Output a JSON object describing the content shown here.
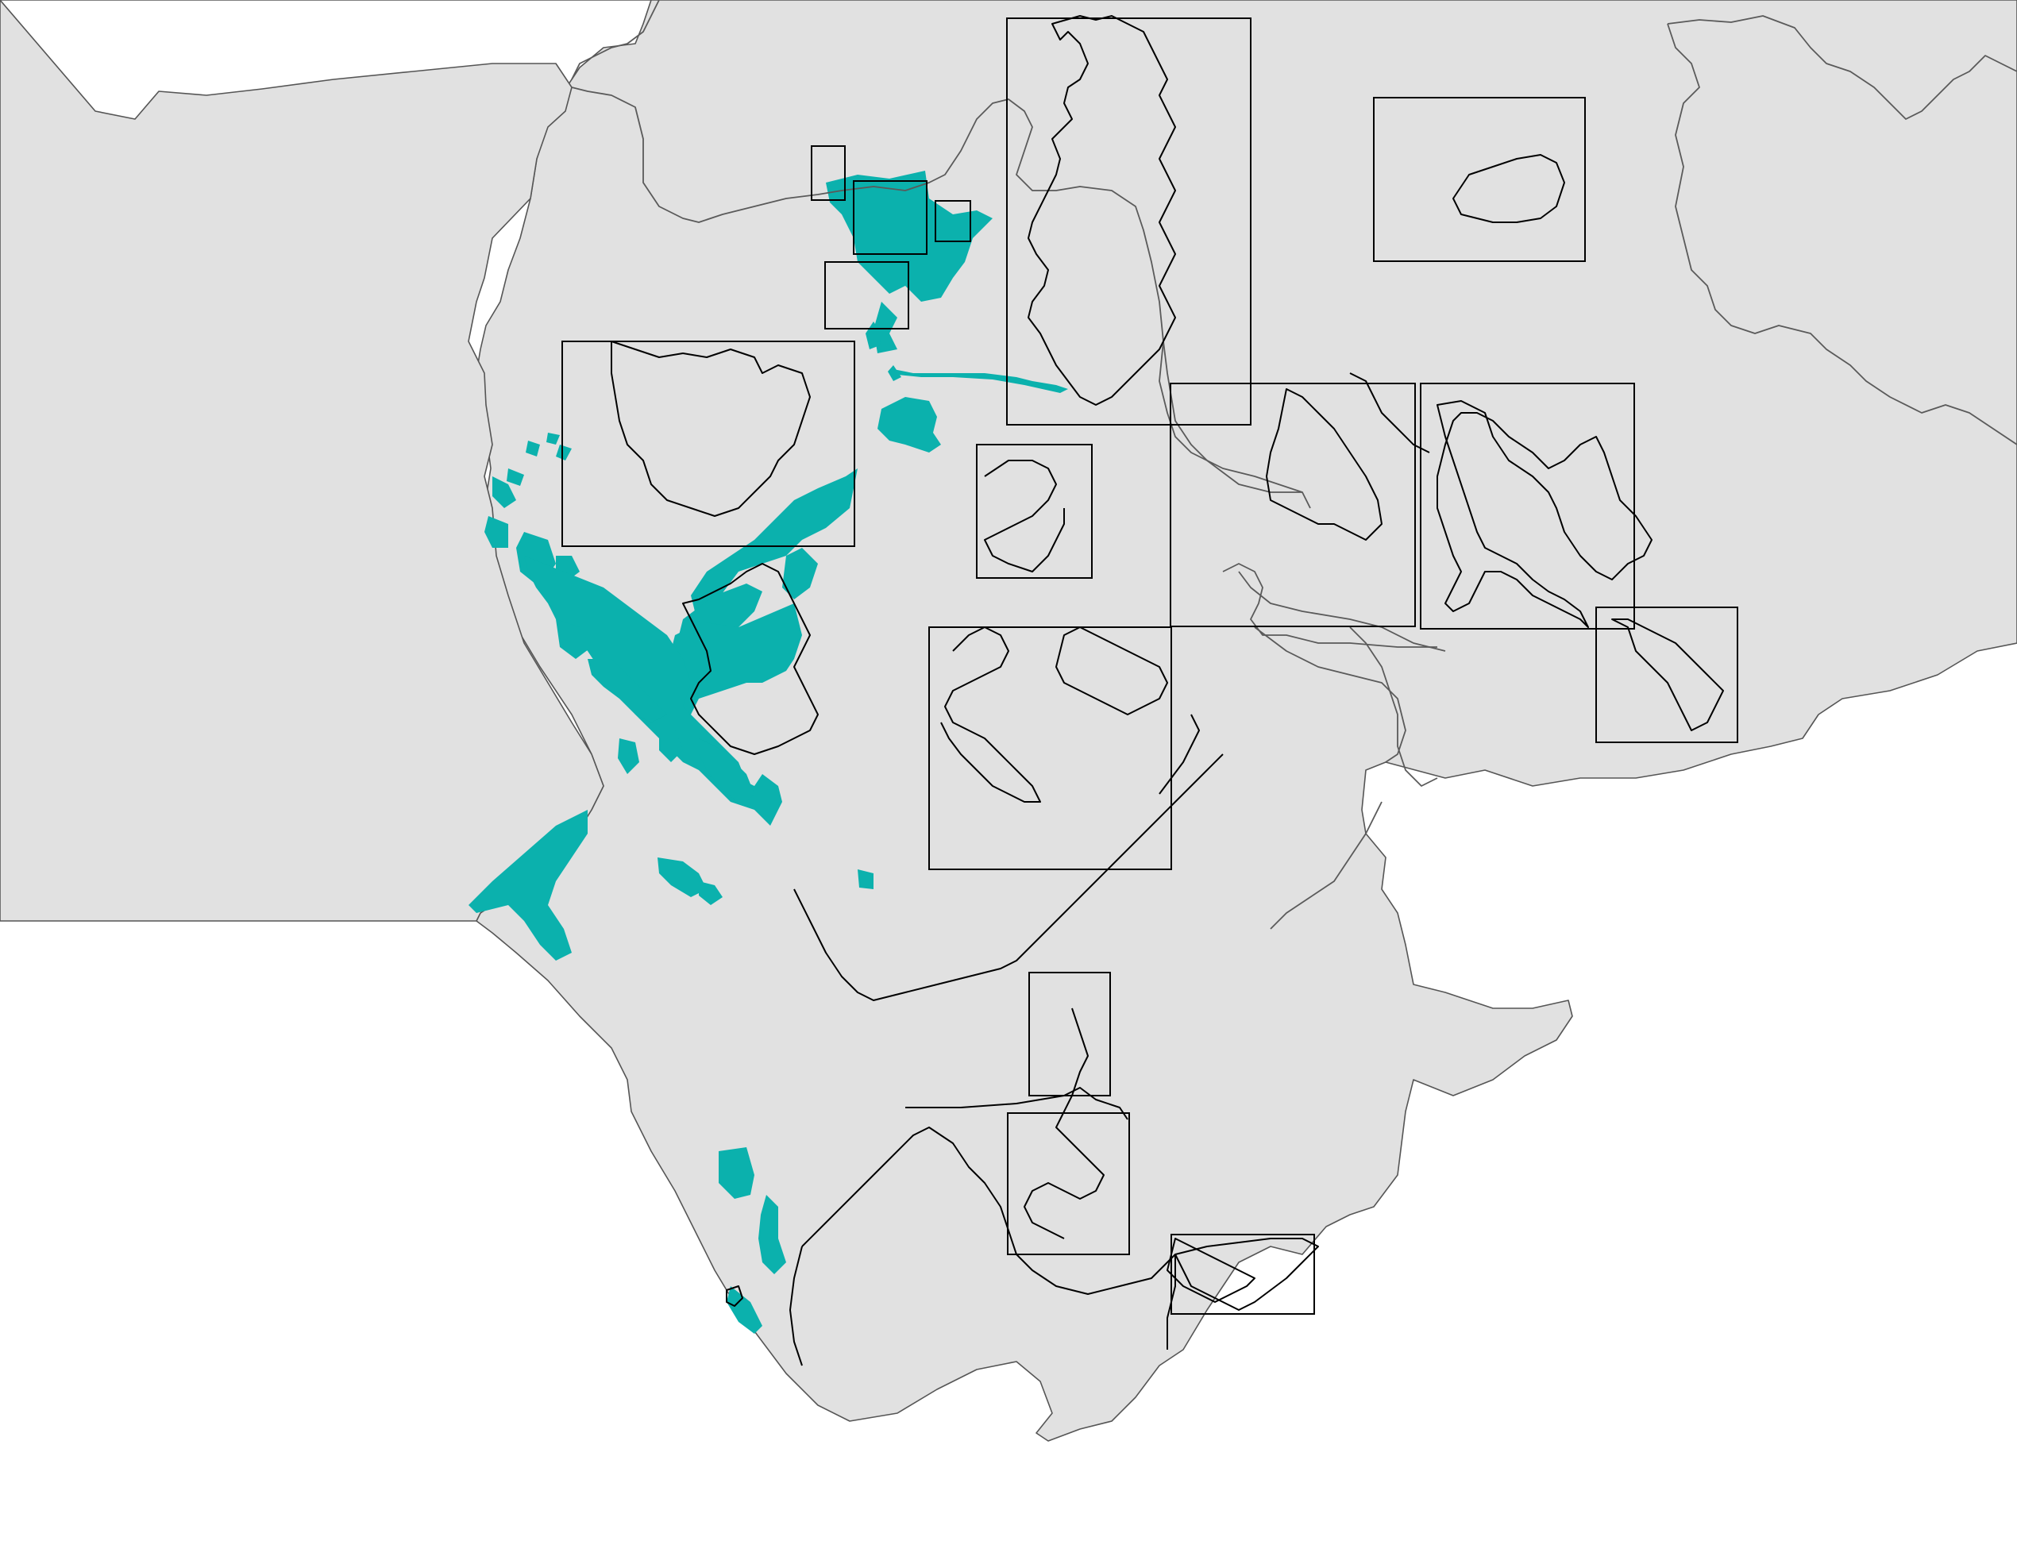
{
  "map": {
    "colors": {
      "background": "#ffffff",
      "land": "#e1e1e1",
      "boundary": "#5a5a5a",
      "detail_outline": "#000000",
      "habitat": "#0bb1ad"
    },
    "text_labels": []
  }
}
